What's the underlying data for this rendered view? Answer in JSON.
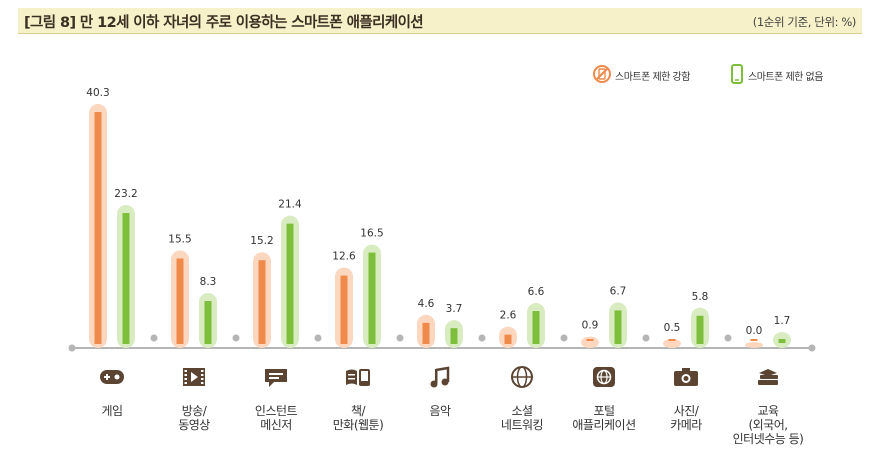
{
  "header": {
    "title": "[그림 8]  만 12세 이하 자녀의 주로 이용하는 스마트폰 애플리케이션",
    "unit": "(1순위 기준, 단위: %)"
  },
  "colors": {
    "restricted": "#f08a4b",
    "restricted_halo": "#fbd7bf",
    "unrestricted": "#7dbf3a",
    "unrestricted_halo": "#d9ecc1",
    "icon": "#5b4532",
    "axis": "#b5b5b5"
  },
  "chart_data": {
    "type": "bar",
    "title": "",
    "xlabel": "",
    "ylabel": "",
    "ylim": [
      0,
      42
    ],
    "legend_position": "top-right",
    "categories": [
      "게임",
      "방송/\n동영상",
      "인스턴트\n메신저",
      "책/\n만화(웹툰)",
      "음악",
      "소셜\n네트워킹",
      "포털\n애플리케이션",
      "사진/\n카메라",
      "교육\n(외국어,\n인터넷수능 등)"
    ],
    "category_icons": [
      "gamepad-icon",
      "film-icon",
      "chat-icon",
      "book-icon",
      "music-icon",
      "globe-network-icon",
      "portal-globe-icon",
      "camera-icon",
      "books-icon"
    ],
    "series": [
      {
        "name": "스마트폰 제한 강함",
        "values": [
          40.3,
          15.5,
          15.2,
          12.6,
          4.6,
          2.6,
          0.9,
          0.5,
          0.0
        ]
      },
      {
        "name": "스마트폰 제한 없음",
        "values": [
          23.2,
          8.3,
          21.4,
          16.5,
          3.7,
          6.6,
          6.7,
          5.8,
          1.7
        ]
      }
    ],
    "value_labels": [
      [
        "40.3",
        "15.5",
        "15.2",
        "12.6",
        "4.6",
        "2.6",
        "0.9",
        "0.5",
        "0.0"
      ],
      [
        "23.2",
        "8.3",
        "21.4",
        "16.5",
        "3.7",
        "6.6",
        "6.7",
        "5.8",
        "1.7"
      ]
    ]
  }
}
